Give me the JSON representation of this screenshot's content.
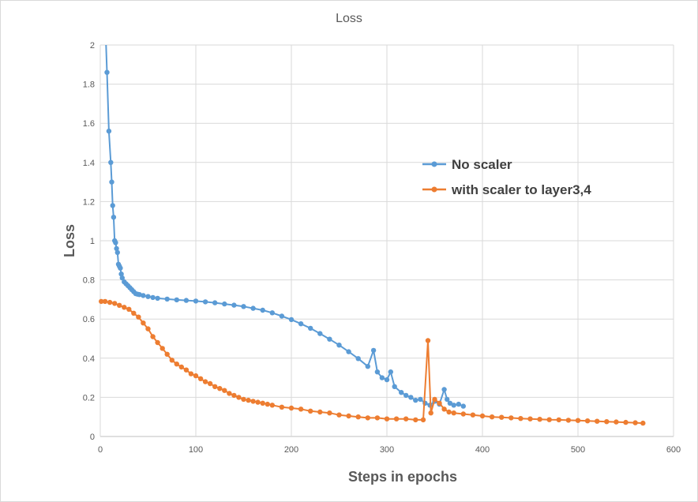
{
  "chart_data": {
    "type": "line",
    "title": "Loss",
    "xlabel": "Steps in epochs",
    "ylabel": "Loss",
    "xlim": [
      0,
      600
    ],
    "ylim": [
      0,
      2
    ],
    "xticks": [
      0,
      100,
      200,
      300,
      400,
      500,
      600
    ],
    "yticks": [
      0,
      0.2,
      0.4,
      0.6,
      0.8,
      1,
      1.2,
      1.4,
      1.6,
      1.8,
      2
    ],
    "ytick_labels": [
      "0",
      "0.2",
      "0.4",
      "0.6",
      "0.8",
      "1",
      "1.2",
      "1.4",
      "1.6",
      "1.8",
      "2"
    ],
    "grid": true,
    "legend_position": "right",
    "series": [
      {
        "name": "No scaler",
        "color": "#5B9BD5",
        "points": [
          [
            7,
            1.86
          ],
          [
            9,
            1.56
          ],
          [
            11,
            1.4
          ],
          [
            12,
            1.3
          ],
          [
            13,
            1.18
          ],
          [
            14,
            1.12
          ],
          [
            15,
            1.0
          ],
          [
            16,
            0.99
          ],
          [
            17,
            0.96
          ],
          [
            18,
            0.94
          ],
          [
            19,
            0.88
          ],
          [
            20,
            0.87
          ],
          [
            21,
            0.86
          ],
          [
            22,
            0.83
          ],
          [
            23,
            0.81
          ],
          [
            25,
            0.79
          ],
          [
            27,
            0.78
          ],
          [
            29,
            0.77
          ],
          [
            31,
            0.76
          ],
          [
            33,
            0.75
          ],
          [
            35,
            0.74
          ],
          [
            37,
            0.73
          ],
          [
            39,
            0.727
          ],
          [
            41,
            0.725
          ],
          [
            45,
            0.72
          ],
          [
            50,
            0.715
          ],
          [
            55,
            0.71
          ],
          [
            60,
            0.706
          ],
          [
            70,
            0.702
          ],
          [
            80,
            0.698
          ],
          [
            90,
            0.695
          ],
          [
            100,
            0.692
          ],
          [
            110,
            0.688
          ],
          [
            120,
            0.683
          ],
          [
            130,
            0.677
          ],
          [
            140,
            0.671
          ],
          [
            150,
            0.664
          ],
          [
            160,
            0.655
          ],
          [
            170,
            0.645
          ],
          [
            180,
            0.632
          ],
          [
            190,
            0.615
          ],
          [
            200,
            0.597
          ],
          [
            210,
            0.576
          ],
          [
            220,
            0.553
          ],
          [
            230,
            0.526
          ],
          [
            240,
            0.497
          ],
          [
            250,
            0.467
          ],
          [
            260,
            0.433
          ],
          [
            270,
            0.398
          ],
          [
            280,
            0.358
          ],
          [
            286,
            0.44
          ],
          [
            290,
            0.33
          ],
          [
            295,
            0.3
          ],
          [
            300,
            0.29
          ],
          [
            304,
            0.33
          ],
          [
            308,
            0.255
          ],
          [
            315,
            0.225
          ],
          [
            320,
            0.21
          ],
          [
            325,
            0.2
          ],
          [
            330,
            0.185
          ],
          [
            335,
            0.19
          ],
          [
            340,
            0.17
          ],
          [
            345,
            0.16
          ],
          [
            350,
            0.18
          ],
          [
            355,
            0.165
          ],
          [
            360,
            0.24
          ],
          [
            363,
            0.19
          ],
          [
            366,
            0.17
          ],
          [
            370,
            0.16
          ],
          [
            375,
            0.165
          ],
          [
            380,
            0.155
          ]
        ]
      },
      {
        "name": "with scaler to layer3,4",
        "color": "#ED7D31",
        "points": [
          [
            1,
            0.69
          ],
          [
            5,
            0.69
          ],
          [
            10,
            0.685
          ],
          [
            15,
            0.68
          ],
          [
            20,
            0.67
          ],
          [
            25,
            0.66
          ],
          [
            30,
            0.65
          ],
          [
            35,
            0.63
          ],
          [
            40,
            0.61
          ],
          [
            45,
            0.58
          ],
          [
            50,
            0.55
          ],
          [
            55,
            0.51
          ],
          [
            60,
            0.48
          ],
          [
            65,
            0.45
          ],
          [
            70,
            0.42
          ],
          [
            75,
            0.39
          ],
          [
            80,
            0.37
          ],
          [
            85,
            0.355
          ],
          [
            90,
            0.34
          ],
          [
            95,
            0.32
          ],
          [
            100,
            0.31
          ],
          [
            105,
            0.295
          ],
          [
            110,
            0.28
          ],
          [
            115,
            0.27
          ],
          [
            120,
            0.255
          ],
          [
            125,
            0.245
          ],
          [
            130,
            0.235
          ],
          [
            135,
            0.22
          ],
          [
            140,
            0.21
          ],
          [
            145,
            0.2
          ],
          [
            150,
            0.19
          ],
          [
            155,
            0.185
          ],
          [
            160,
            0.18
          ],
          [
            165,
            0.175
          ],
          [
            170,
            0.17
          ],
          [
            175,
            0.165
          ],
          [
            180,
            0.16
          ],
          [
            190,
            0.15
          ],
          [
            200,
            0.145
          ],
          [
            210,
            0.14
          ],
          [
            220,
            0.13
          ],
          [
            230,
            0.125
          ],
          [
            240,
            0.12
          ],
          [
            250,
            0.11
          ],
          [
            260,
            0.105
          ],
          [
            270,
            0.1
          ],
          [
            280,
            0.095
          ],
          [
            290,
            0.095
          ],
          [
            300,
            0.09
          ],
          [
            310,
            0.09
          ],
          [
            320,
            0.09
          ],
          [
            330,
            0.085
          ],
          [
            338,
            0.085
          ],
          [
            343,
            0.49
          ],
          [
            346,
            0.12
          ],
          [
            350,
            0.19
          ],
          [
            355,
            0.17
          ],
          [
            360,
            0.14
          ],
          [
            365,
            0.125
          ],
          [
            370,
            0.12
          ],
          [
            380,
            0.115
          ],
          [
            390,
            0.11
          ],
          [
            400,
            0.105
          ],
          [
            410,
            0.1
          ],
          [
            420,
            0.098
          ],
          [
            430,
            0.095
          ],
          [
            440,
            0.092
          ],
          [
            450,
            0.09
          ],
          [
            460,
            0.088
          ],
          [
            470,
            0.086
          ],
          [
            480,
            0.085
          ],
          [
            490,
            0.083
          ],
          [
            500,
            0.082
          ],
          [
            510,
            0.08
          ],
          [
            520,
            0.078
          ],
          [
            530,
            0.076
          ],
          [
            540,
            0.074
          ],
          [
            550,
            0.072
          ],
          [
            560,
            0.07
          ],
          [
            568,
            0.068
          ]
        ]
      }
    ]
  }
}
